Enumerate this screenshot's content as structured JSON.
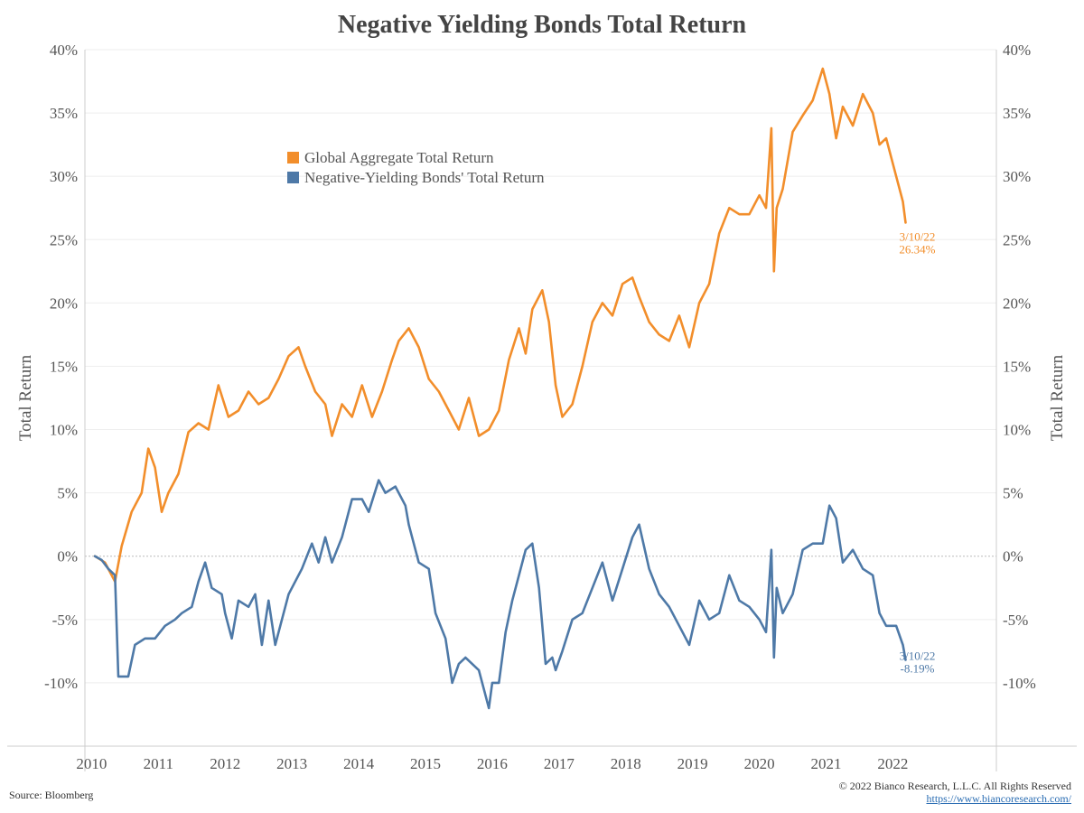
{
  "chart_data": {
    "type": "line",
    "title": "Negative Yielding Bonds Total Return",
    "ylabel": "Total Return",
    "ylabel_right": "Total Return",
    "ylim": [
      -15,
      40
    ],
    "y_ticks": [
      40,
      35,
      30,
      25,
      20,
      15,
      10,
      5,
      0,
      -5,
      -10
    ],
    "y_tick_labels": [
      "40%",
      "35%",
      "30%",
      "25%",
      "20%",
      "15%",
      "10%",
      "5%",
      "0%",
      "-5%",
      "-10%"
    ],
    "xlim": [
      2009.9,
      2023.55
    ],
    "x_ticks": [
      2010,
      2011,
      2012,
      2013,
      2014,
      2015,
      2016,
      2017,
      2018,
      2019,
      2020,
      2021,
      2022
    ],
    "x_tick_labels": [
      "2010",
      "2011",
      "2012",
      "2013",
      "2014",
      "2015",
      "2016",
      "2017",
      "2018",
      "2019",
      "2020",
      "2021",
      "2022"
    ],
    "grid": true,
    "legend_position": "upper-left-center",
    "series": [
      {
        "name": "Global Aggregate Total Return",
        "color": "#f28e2b",
        "end_label_date": "3/10/22",
        "end_label_value": "26.34%",
        "x": [
          2010.05,
          2010.2,
          2010.35,
          2010.45,
          2010.6,
          2010.75,
          2010.85,
          2010.95,
          2011.05,
          2011.15,
          2011.3,
          2011.45,
          2011.6,
          2011.75,
          2011.9,
          2012.05,
          2012.2,
          2012.35,
          2012.5,
          2012.65,
          2012.8,
          2012.95,
          2013.1,
          2013.2,
          2013.35,
          2013.5,
          2013.6,
          2013.75,
          2013.9,
          2014.05,
          2014.2,
          2014.35,
          2014.5,
          2014.6,
          2014.75,
          2014.9,
          2015.05,
          2015.2,
          2015.35,
          2015.5,
          2015.65,
          2015.8,
          2015.95,
          2016.1,
          2016.25,
          2016.4,
          2016.5,
          2016.6,
          2016.75,
          2016.85,
          2016.95,
          2017.05,
          2017.2,
          2017.35,
          2017.5,
          2017.65,
          2017.8,
          2017.95,
          2018.1,
          2018.2,
          2018.35,
          2018.5,
          2018.65,
          2018.8,
          2018.95,
          2019.1,
          2019.25,
          2019.4,
          2019.55,
          2019.7,
          2019.85,
          2020.0,
          2020.1,
          2020.18,
          2020.22,
          2020.26,
          2020.35,
          2020.5,
          2020.65,
          2020.8,
          2020.95,
          2021.05,
          2021.15,
          2021.25,
          2021.4,
          2021.55,
          2021.7,
          2021.8,
          2021.9,
          2022.05,
          2022.15,
          2022.19
        ],
        "y": [
          0.0,
          -0.5,
          -2.0,
          0.8,
          3.5,
          5.0,
          8.5,
          7.0,
          3.5,
          5.0,
          6.5,
          9.8,
          10.5,
          10.0,
          13.5,
          11.0,
          11.5,
          13.0,
          12.0,
          12.5,
          14.0,
          15.8,
          16.5,
          15.0,
          13.0,
          12.0,
          9.5,
          12.0,
          11.0,
          13.5,
          11.0,
          13.0,
          15.5,
          17.0,
          18.0,
          16.5,
          14.0,
          13.0,
          11.5,
          10.0,
          12.5,
          9.5,
          10.0,
          11.5,
          15.5,
          18.0,
          16.0,
          19.5,
          21.0,
          18.5,
          13.5,
          11.0,
          12.0,
          15.0,
          18.5,
          20.0,
          19.0,
          21.5,
          22.0,
          20.5,
          18.5,
          17.5,
          17.0,
          19.0,
          16.5,
          20.0,
          21.5,
          25.5,
          27.5,
          27.0,
          27.0,
          28.5,
          27.5,
          33.8,
          22.5,
          27.5,
          29.0,
          33.5,
          34.8,
          36.0,
          38.5,
          36.5,
          33.0,
          35.5,
          34.0,
          36.5,
          35.0,
          32.5,
          33.0,
          30.0,
          28.0,
          26.34
        ]
      },
      {
        "name": "Negative-Yielding Bonds' Total Return",
        "color": "#4e79a7",
        "end_label_date": "3/10/22",
        "end_label_value": "-8.19%",
        "x": [
          2010.05,
          2010.15,
          2010.25,
          2010.35,
          2010.4,
          2010.55,
          2010.65,
          2010.8,
          2010.95,
          2011.1,
          2011.25,
          2011.35,
          2011.5,
          2011.6,
          2011.7,
          2011.8,
          2011.95,
          2012.0,
          2012.1,
          2012.2,
          2012.35,
          2012.45,
          2012.55,
          2012.65,
          2012.75,
          2012.85,
          2012.95,
          2013.05,
          2013.15,
          2013.3,
          2013.4,
          2013.5,
          2013.6,
          2013.75,
          2013.9,
          2014.05,
          2014.15,
          2014.3,
          2014.4,
          2014.55,
          2014.7,
          2014.75,
          2014.9,
          2015.05,
          2015.15,
          2015.3,
          2015.4,
          2015.5,
          2015.6,
          2015.7,
          2015.8,
          2015.95,
          2016.0,
          2016.1,
          2016.2,
          2016.3,
          2016.4,
          2016.5,
          2016.6,
          2016.7,
          2016.8,
          2016.9,
          2016.95,
          2017.05,
          2017.2,
          2017.35,
          2017.5,
          2017.65,
          2017.8,
          2017.95,
          2018.1,
          2018.2,
          2018.35,
          2018.5,
          2018.65,
          2018.8,
          2018.95,
          2019.1,
          2019.25,
          2019.4,
          2019.55,
          2019.7,
          2019.85,
          2020.0,
          2020.1,
          2020.18,
          2020.22,
          2020.26,
          2020.35,
          2020.5,
          2020.65,
          2020.8,
          2020.95,
          2021.05,
          2021.15,
          2021.25,
          2021.4,
          2021.55,
          2021.7,
          2021.8,
          2021.9,
          2022.05,
          2022.15,
          2022.19
        ],
        "y": [
          0.0,
          -0.3,
          -1.0,
          -1.5,
          -9.5,
          -9.5,
          -7.0,
          -6.5,
          -6.5,
          -5.5,
          -5.0,
          -4.5,
          -4.0,
          -2.0,
          -0.5,
          -2.5,
          -3.0,
          -4.5,
          -6.5,
          -3.5,
          -4.0,
          -3.0,
          -7.0,
          -3.5,
          -7.0,
          -5.0,
          -3.0,
          -2.0,
          -1.0,
          1.0,
          -0.5,
          1.5,
          -0.5,
          1.5,
          4.5,
          4.5,
          3.5,
          6.0,
          5.0,
          5.5,
          4.0,
          2.5,
          -0.5,
          -1.0,
          -4.5,
          -6.5,
          -10.0,
          -8.5,
          -8.0,
          -8.5,
          -9.0,
          -12.0,
          -10.0,
          -10.0,
          -6.0,
          -3.5,
          -1.5,
          0.5,
          1.0,
          -2.5,
          -8.5,
          -8.0,
          -9.0,
          -7.5,
          -5.0,
          -4.5,
          -2.5,
          -0.5,
          -3.5,
          -1.0,
          1.5,
          2.5,
          -1.0,
          -3.0,
          -4.0,
          -5.5,
          -7.0,
          -3.5,
          -5.0,
          -4.5,
          -1.5,
          -3.5,
          -4.0,
          -5.0,
          -6.0,
          0.5,
          -8.0,
          -2.5,
          -4.5,
          -3.0,
          0.5,
          1.0,
          1.0,
          4.0,
          3.0,
          -0.5,
          0.5,
          -1.0,
          -1.5,
          -4.5,
          -5.5,
          -5.5,
          -7.0,
          -8.19
        ]
      }
    ]
  },
  "footer": {
    "source": "Source: Bloomberg",
    "copyright": "© 2022 Bianco Research, L.L.C. All Rights Reserved",
    "url": "https://www.biancoresearch.com/"
  }
}
